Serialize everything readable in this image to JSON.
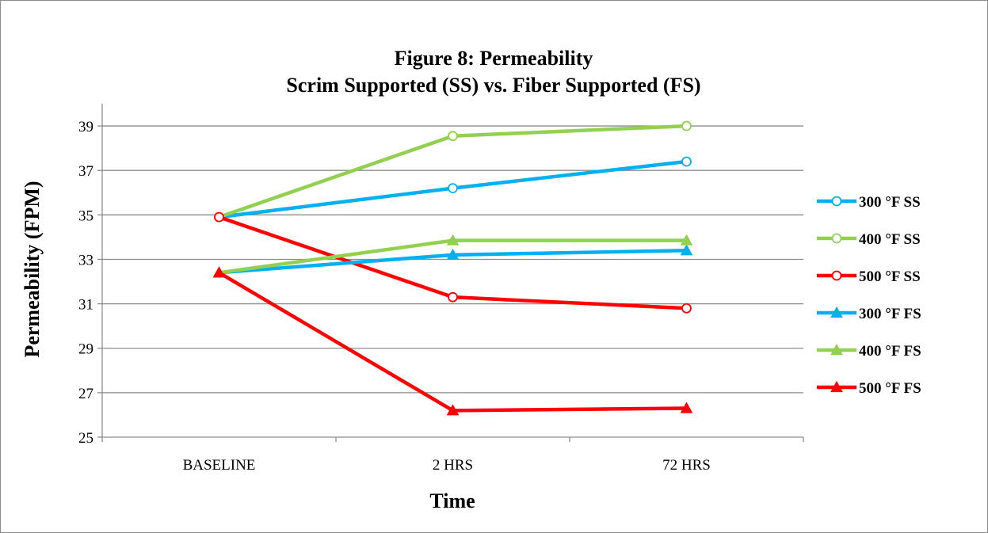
{
  "chart_data": {
    "type": "line",
    "title_line1": "Figure 8:  Permeability",
    "title_line2": "Scrim Supported (SS) vs. Fiber Supported (FS)",
    "xlabel": "Time",
    "ylabel": "Permeability (FPM)",
    "categories": [
      "BASELINE",
      "2 HRS",
      "72 HRS"
    ],
    "ylim": [
      25,
      40
    ],
    "yticks": [
      25,
      27,
      29,
      31,
      33,
      35,
      37,
      39
    ],
    "grid": true,
    "legend_position": "right",
    "series": [
      {
        "name": "300 °F SS",
        "values": [
          34.9,
          36.2,
          37.4
        ],
        "color": "#00B0F0",
        "marker": "circle"
      },
      {
        "name": "400 °F SS",
        "values": [
          34.9,
          38.55,
          39.0
        ],
        "color": "#92D050",
        "marker": "circle"
      },
      {
        "name": "500 °F SS",
        "values": [
          34.9,
          31.3,
          30.8
        ],
        "color": "#FF0000",
        "marker": "circle"
      },
      {
        "name": "300 °F FS",
        "values": [
          32.4,
          33.2,
          33.4
        ],
        "color": "#00B0F0",
        "marker": "triangle"
      },
      {
        "name": "400 °F FS",
        "values": [
          32.4,
          33.85,
          33.85
        ],
        "color": "#92D050",
        "marker": "triangle"
      },
      {
        "name": "500 °F FS",
        "values": [
          32.4,
          26.2,
          26.3
        ],
        "color": "#FF0000",
        "marker": "triangle"
      }
    ]
  }
}
